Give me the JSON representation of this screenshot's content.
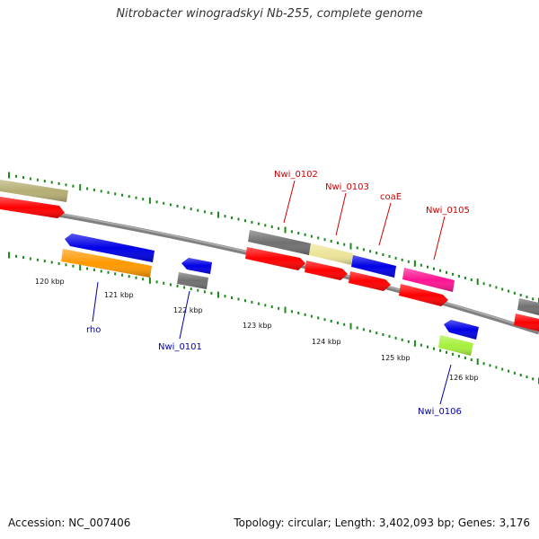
{
  "title": "Nitrobacter winogradskyi Nb-255, complete genome",
  "footer": {
    "accession": "Accession: NC_007406",
    "summary": "Topology: circular; Length: 3,402,093 bp; Genes: 3,176"
  },
  "colors": {
    "backbone": "#808080",
    "scale_tick": "#1a8a1a",
    "label_forward": "#cc0000",
    "label_reverse": "#0000aa",
    "kbp_label": "#111111"
  },
  "scale_labels": [
    "120 kbp",
    "121 kbp",
    "122 kbp",
    "123 kbp",
    "124 kbp",
    "125 kbp",
    "126 kbp"
  ],
  "gene_labels": {
    "forward": [
      "Nwi_0102",
      "Nwi_0103",
      "coaE",
      "Nwi_0105"
    ],
    "reverse": [
      "rho",
      "Nwi_0101",
      "Nwi_0106"
    ]
  },
  "feature_colors": {
    "olive": "#b5ae73",
    "red": "#ff0000",
    "blue": "#0000e6",
    "orange": "#ff9900",
    "gray": "#707070",
    "khaki": "#ece497",
    "pink": "#ff1493",
    "lime": "#a6f03c"
  }
}
